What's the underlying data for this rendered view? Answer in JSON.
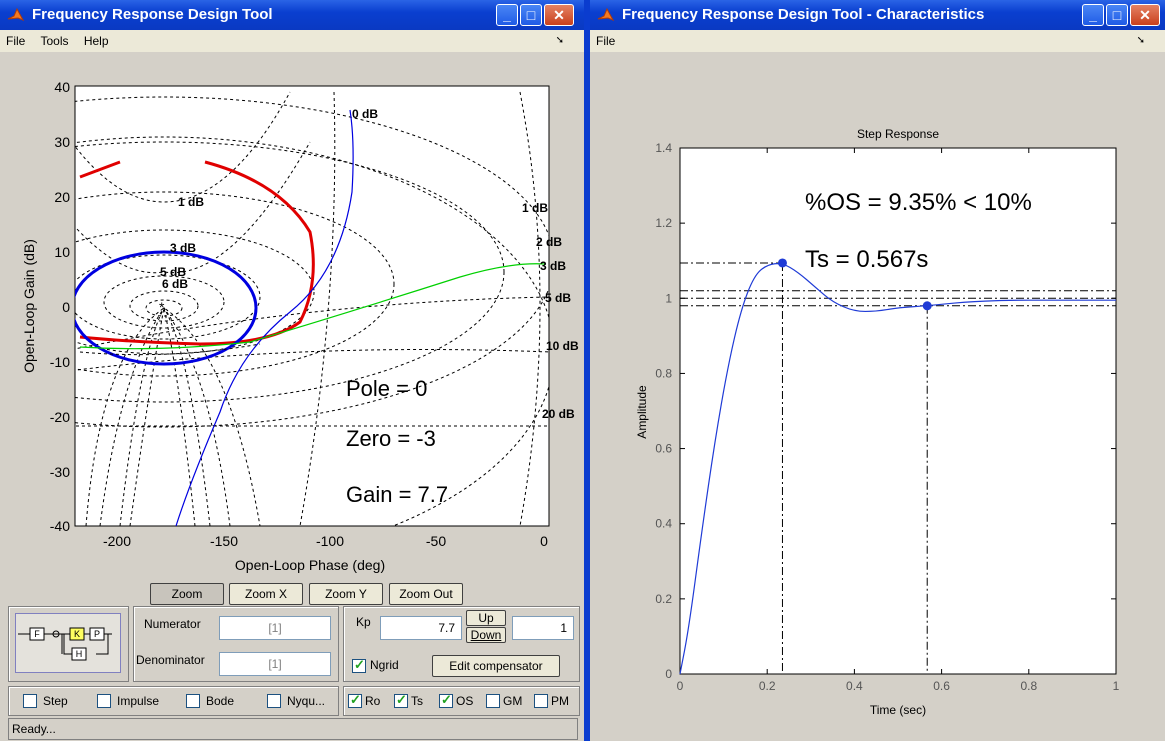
{
  "left_window": {
    "title": "Frequency Response Design Tool",
    "menu": [
      "File",
      "Tools",
      "Help"
    ],
    "nichols": {
      "xlabel": "Open-Loop Phase (deg)",
      "ylabel": "Open-Loop Gain (dB)",
      "xticks": [
        "-200",
        "-150",
        "-100",
        "-50",
        "0"
      ],
      "yticks": [
        "40",
        "30",
        "20",
        "10",
        "0",
        "-10",
        "-20",
        "-30",
        "-40"
      ],
      "grid_labels": [
        "0 dB",
        "1 dB",
        "1 dB",
        "2 dB",
        "3 dB",
        "3 dB",
        "5 dB",
        "6 dB",
        "5 dB",
        "10 dB",
        "20 dB"
      ],
      "annotations": [
        "Pole = 0",
        "Zero = -3",
        "Gain = 7.7"
      ]
    },
    "zoom_buttons": [
      "Zoom",
      "Zoom X",
      "Zoom Y",
      "Zoom Out"
    ],
    "numerator_label": "Numerator",
    "numerator_value": "[1]",
    "denominator_label": "Denominator",
    "denominator_value": "[1]",
    "kp_label": "Kp",
    "kp_value": "7.7",
    "up_label": "Up",
    "down_label": "Down",
    "step_value": "1",
    "ngrid_label": "Ngrid",
    "edit_compensator_label": "Edit compensator",
    "plot_checks": [
      "Step",
      "Impulse",
      "Bode",
      "Nyqu..."
    ],
    "char_checks": [
      "Ro",
      "Ts",
      "OS",
      "GM",
      "PM"
    ],
    "status_text": "Ready...",
    "block_diagram_labels": [
      "F",
      "K",
      "P",
      "H"
    ]
  },
  "right_window": {
    "title": "Frequency Response Design Tool - Characteristics",
    "menu": [
      "File"
    ],
    "annotations": [
      "%OS = 9.35% < 10%",
      "Ts = 0.567s"
    ]
  },
  "chart_data": {
    "type": "line",
    "title": "Step Response",
    "xlabel": "Time (sec)",
    "ylabel": "Amplitude",
    "xlim": [
      0,
      1
    ],
    "ylim": [
      0,
      1.4
    ],
    "xticks": [
      "0",
      "0.2",
      "0.4",
      "0.6",
      "0.8",
      "1"
    ],
    "yticks": [
      "0",
      "0.2",
      "0.4",
      "0.6",
      "0.8",
      "1",
      "1.2",
      "1.4"
    ],
    "x": [
      0,
      0.02,
      0.05,
      0.08,
      0.11,
      0.14,
      0.17,
      0.2,
      0.235,
      0.27,
      0.31,
      0.35,
      0.4,
      0.45,
      0.5,
      0.567,
      0.65,
      0.75,
      0.85,
      1.0
    ],
    "y": [
      0,
      0.12,
      0.38,
      0.62,
      0.82,
      0.97,
      1.06,
      1.09,
      1.094,
      1.07,
      1.03,
      0.99,
      0.965,
      0.965,
      0.975,
      0.98,
      0.99,
      0.995,
      0.995,
      0.995
    ],
    "peak": {
      "x": 0.235,
      "y": 1.094
    },
    "settling": {
      "x": 0.567,
      "y": 0.98
    },
    "final_value": 1.0,
    "settling_band": [
      0.98,
      1.02
    ],
    "grid": false
  }
}
